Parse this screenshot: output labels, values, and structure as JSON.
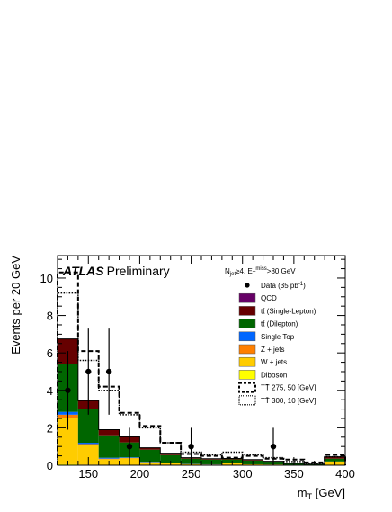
{
  "chart_data": {
    "type": "bar",
    "stacked": true,
    "title": "",
    "badge": {
      "brand": "ATLAS",
      "label": "Preliminary"
    },
    "selection": {
      "line1": "N",
      "line1_sub": "jet",
      "line1_rest": "≥4, E",
      "line1_sub2": "T",
      "line1_sup2": "miss",
      "line1_end": ">80 GeV"
    },
    "xlabel": {
      "main": "m",
      "sub": "T",
      "unit": " [GeV]"
    },
    "ylabel": "Events per 20 GeV",
    "xlim": [
      120,
      400
    ],
    "ylim": [
      0,
      11.2
    ],
    "xticks": [
      150,
      200,
      250,
      300,
      350,
      400
    ],
    "yticks": [
      0,
      2,
      4,
      6,
      8,
      10
    ],
    "bin_edges": [
      120,
      140,
      160,
      180,
      200,
      220,
      240,
      260,
      280,
      300,
      320,
      340,
      360,
      380,
      400
    ],
    "series": [
      {
        "name": "Diboson",
        "color": "#ffff00",
        "values": [
          0.05,
          0.03,
          0.02,
          0.02,
          0.01,
          0.01,
          0.0,
          0.0,
          0.0,
          0.0,
          0.0,
          0.0,
          0.0,
          0.0
        ]
      },
      {
        "name": "W + jets",
        "color": "#ffcc00",
        "values": [
          2.45,
          1.05,
          0.3,
          0.35,
          0.14,
          0.1,
          0.05,
          0.04,
          0.1,
          0.05,
          0.04,
          0.01,
          0.01,
          0.2
        ]
      },
      {
        "name": "Z + jets",
        "color": "#ff7f00",
        "values": [
          0.2,
          0.05,
          0.03,
          0.02,
          0.01,
          0.01,
          0.01,
          0.0,
          0.0,
          0.0,
          0.0,
          0.0,
          0.0,
          0.0
        ]
      },
      {
        "name": "Single Top",
        "color": "#0066ff",
        "values": [
          0.15,
          0.07,
          0.05,
          0.03,
          0.02,
          0.02,
          0.01,
          0.01,
          0.01,
          0.0,
          0.0,
          0.0,
          0.0,
          0.0
        ]
      },
      {
        "name": "t̄t (Dilepton)",
        "display": "tt̄ (Dilepton)",
        "color": "#006600",
        "values": [
          2.55,
          1.8,
          1.2,
          0.8,
          0.65,
          0.4,
          0.28,
          0.25,
          0.2,
          0.2,
          0.15,
          0.08,
          0.05,
          0.15
        ]
      },
      {
        "name": "tt̄ (Single-Lepton)",
        "color": "#660000",
        "values": [
          1.35,
          0.45,
          0.3,
          0.3,
          0.1,
          0.1,
          0.05,
          0.05,
          0.05,
          0.05,
          0.02,
          0.0,
          0.0,
          0.1
        ]
      },
      {
        "name": "QCD",
        "color": "#660066",
        "values": [
          0.0,
          0.0,
          0.0,
          0.0,
          0.0,
          0.0,
          0.0,
          0.0,
          0.0,
          0.0,
          0.0,
          0.0,
          0.0,
          0.0
        ]
      }
    ],
    "signals": [
      {
        "name": "TT̄ 275, 50 [GeV]",
        "style": "dashed",
        "values": [
          10.3,
          6.1,
          4.2,
          2.8,
          2.1,
          1.2,
          0.6,
          0.5,
          0.4,
          0.5,
          0.35,
          0.3,
          0.15,
          0.55
        ]
      },
      {
        "name": "TT̄ 300, 10 [GeV]",
        "style": "dotted",
        "values": [
          9.2,
          5.6,
          4.0,
          2.7,
          2.0,
          1.2,
          0.7,
          0.55,
          0.7,
          0.55,
          0.4,
          0.2,
          0.1,
          0.45
        ]
      }
    ],
    "data": {
      "name": "Data (35 pb",
      "name_sup": "-1",
      "name_end": ")",
      "points": [
        {
          "x": 130,
          "y": 4,
          "err": 2.1
        },
        {
          "x": 150,
          "y": 5,
          "err": 2.3
        },
        {
          "x": 170,
          "y": 5,
          "err": 2.3
        },
        {
          "x": 190,
          "y": 1,
          "err": 1.0
        },
        {
          "x": 250,
          "y": 1,
          "err": 1.0
        },
        {
          "x": 330,
          "y": 1,
          "err": 1.0
        }
      ]
    },
    "legend_position": "top-right"
  }
}
